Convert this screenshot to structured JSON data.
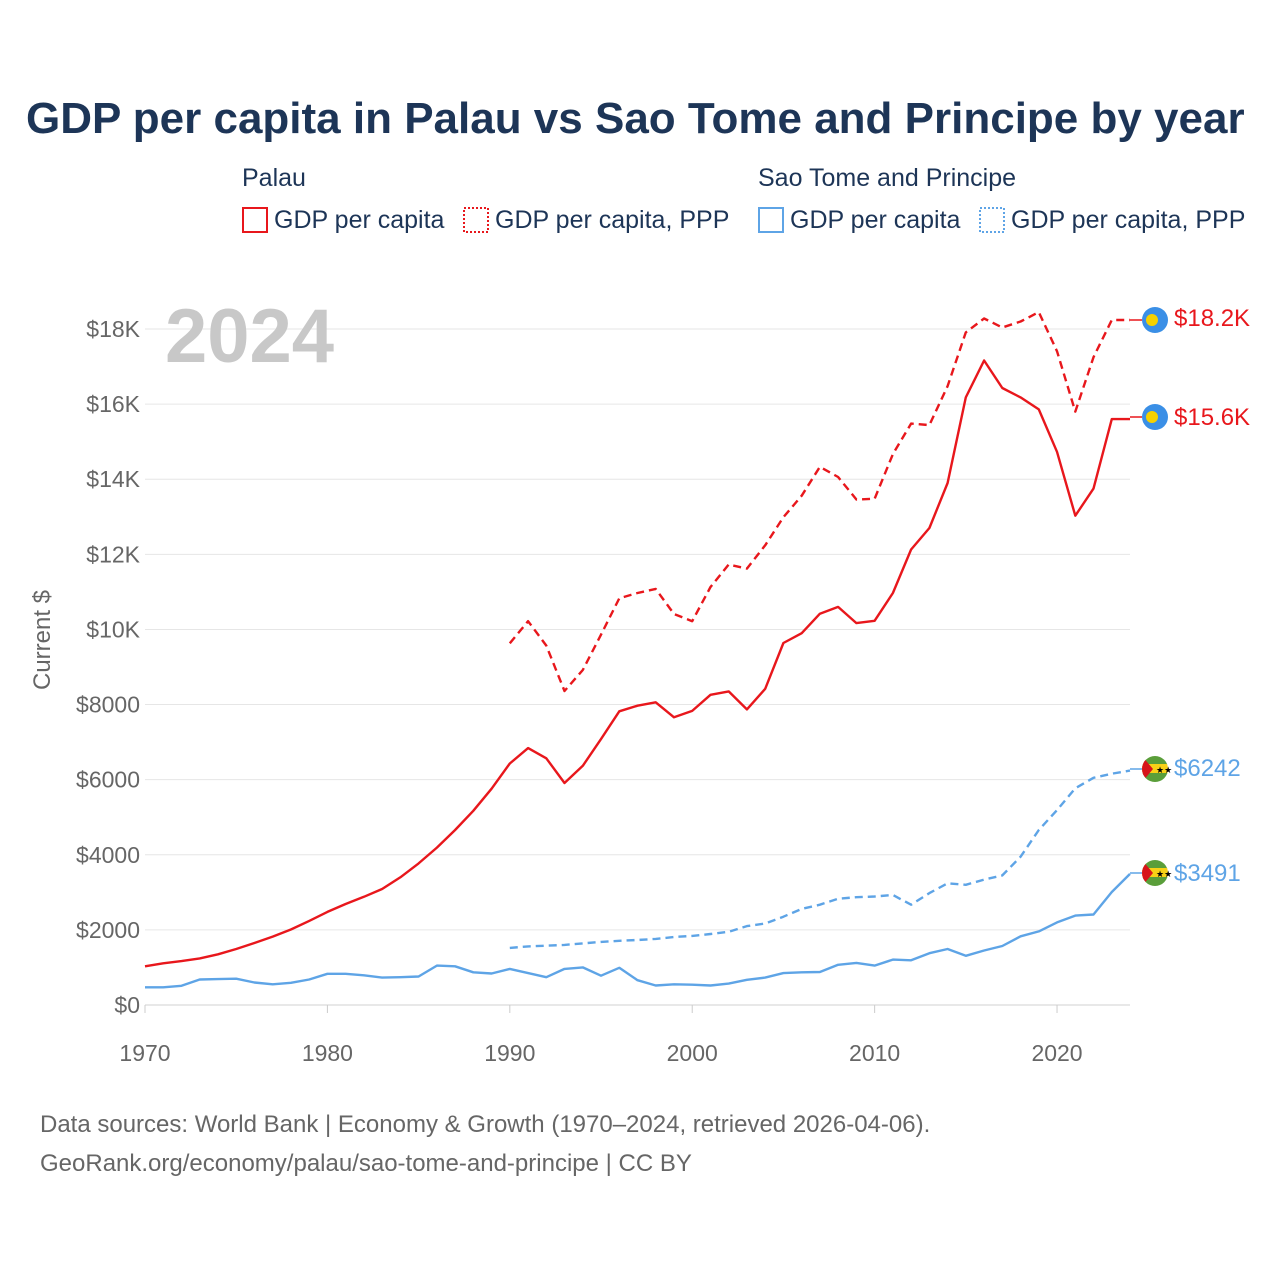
{
  "title": "GDP per capita in Palau vs Sao Tome and Principe by year",
  "legend": {
    "groups": [
      {
        "name": "Palau",
        "items": [
          "GDP per capita",
          "GDP per capita, PPP"
        ],
        "color": "#e8171c"
      },
      {
        "name": "Sao Tome and Principe",
        "items": [
          "GDP per capita",
          "GDP per capita, PPP"
        ],
        "color": "#5ea4e6"
      }
    ]
  },
  "year_label": "2024",
  "end_labels": {
    "palau_ppp": "$18.2K",
    "palau_gdp": "$15.6K",
    "stp_ppp": "$6242",
    "stp_gdp": "$3491"
  },
  "source_lines": [
    "Data sources: World Bank | Economy & Growth (1970–2024, retrieved 2026-04-06).",
    "GeoRank.org/economy/palau/sao-tome-and-principe | CC BY"
  ],
  "chart_data": {
    "type": "line",
    "title": "GDP per capita in Palau vs Sao Tome and Principe by year",
    "xlabel": "",
    "ylabel": "Current $",
    "xlim": [
      1970,
      2024
    ],
    "ylim": [
      0,
      18000
    ],
    "xticks": [
      1970,
      1980,
      1990,
      2000,
      2010,
      2020
    ],
    "xtick_labels": [
      "1970",
      "1980",
      "1990",
      "2000",
      "2010",
      "2020"
    ],
    "yticks": [
      0,
      2000,
      4000,
      6000,
      8000,
      10000,
      12000,
      14000,
      16000,
      18000
    ],
    "ytick_labels": [
      "$0",
      "$2000",
      "$4000",
      "$6000",
      "$8000",
      "$10K",
      "$12K",
      "$14K",
      "$16K",
      "$18K"
    ],
    "grid": true,
    "series": [
      {
        "name": "Palau GDP per capita",
        "color": "#e8171c",
        "style": "solid",
        "start_year": 1970,
        "values": [
          1030,
          1110,
          1170,
          1240,
          1350,
          1490,
          1650,
          1820,
          2010,
          2240,
          2480,
          2690,
          2880,
          3090,
          3400,
          3770,
          4190,
          4660,
          5170,
          5760,
          6430,
          6840,
          6570,
          5910,
          6370,
          7080,
          7820,
          7970,
          8060,
          7660,
          7830,
          8260,
          8350,
          7870,
          8420,
          9640,
          9900,
          10420,
          10600,
          10170,
          10230,
          10970,
          12130,
          12700,
          13900,
          16180,
          17160,
          16430,
          16180,
          15860,
          14730,
          13030,
          13750,
          15600,
          15600
        ]
      },
      {
        "name": "Palau GDP per capita, PPP",
        "color": "#e8171c",
        "style": "dashed",
        "start_year": 1990,
        "values": [
          9630,
          10220,
          9570,
          8360,
          8920,
          9860,
          10830,
          10970,
          11080,
          10410,
          10220,
          11130,
          11730,
          11620,
          12240,
          12990,
          13560,
          14330,
          14060,
          13460,
          13480,
          14670,
          15480,
          15440,
          16480,
          17910,
          18280,
          18040,
          18200,
          18450,
          17410,
          15800,
          17250,
          18240,
          18240
        ]
      },
      {
        "name": "Sao Tome and Principe GDP per capita",
        "color": "#5ea4e6",
        "style": "solid",
        "start_year": 1970,
        "values": [
          470,
          470,
          510,
          680,
          690,
          700,
          600,
          550,
          590,
          680,
          830,
          830,
          790,
          730,
          740,
          760,
          1050,
          1030,
          870,
          840,
          960,
          850,
          740,
          960,
          1000,
          780,
          990,
          660,
          520,
          550,
          540,
          520,
          570,
          670,
          730,
          850,
          870,
          880,
          1070,
          1120,
          1050,
          1210,
          1190,
          1380,
          1490,
          1310,
          1450,
          1570,
          1830,
          1960,
          2200,
          2380,
          2410,
          3010,
          3491
        ]
      },
      {
        "name": "Sao Tome and Principe GDP per capita, PPP",
        "color": "#5ea4e6",
        "style": "dashed",
        "start_year": 1990,
        "values": [
          1520,
          1560,
          1580,
          1600,
          1640,
          1680,
          1710,
          1730,
          1760,
          1810,
          1840,
          1890,
          1950,
          2100,
          2170,
          2350,
          2560,
          2670,
          2830,
          2870,
          2890,
          2930,
          2670,
          2980,
          3240,
          3200,
          3340,
          3450,
          3950,
          4660,
          5190,
          5770,
          6050,
          6160,
          6242
        ]
      }
    ]
  }
}
